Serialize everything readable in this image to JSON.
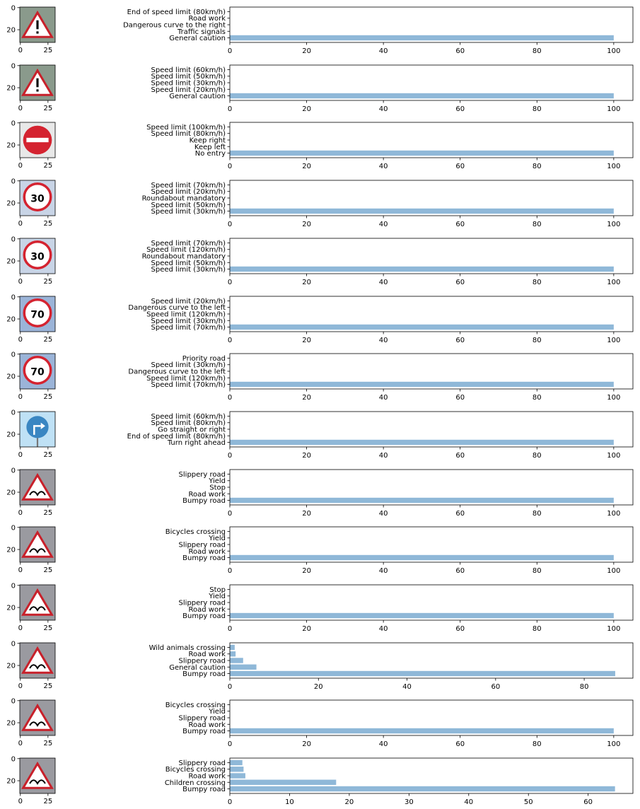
{
  "chart_data": [
    {
      "type": "bar",
      "orientation": "horizontal",
      "thumbnail": {
        "icon": "general-caution-sign-icon",
        "ytick_labels": [
          "0",
          "20"
        ],
        "xtick_labels": [
          "0",
          "25"
        ]
      },
      "categories": [
        "General caution",
        "Traffic signals",
        "Dangerous curve to the right",
        "Road work",
        "End of speed limit (80km/h)"
      ],
      "values": [
        100,
        0,
        0,
        0,
        0
      ],
      "xlim": [
        0,
        105
      ],
      "xticks": [
        0,
        20,
        40,
        60,
        80,
        100
      ]
    },
    {
      "type": "bar",
      "orientation": "horizontal",
      "thumbnail": {
        "icon": "general-caution-sign-icon",
        "ytick_labels": [
          "0",
          "20"
        ],
        "xtick_labels": [
          "0",
          "25"
        ]
      },
      "categories": [
        "General caution",
        "Speed limit (20km/h)",
        "Speed limit (30km/h)",
        "Speed limit (50km/h)",
        "Speed limit (60km/h)"
      ],
      "values": [
        100,
        0,
        0,
        0,
        0
      ],
      "xlim": [
        0,
        105
      ],
      "xticks": [
        0,
        20,
        40,
        60,
        80,
        100
      ]
    },
    {
      "type": "bar",
      "orientation": "horizontal",
      "thumbnail": {
        "icon": "no-entry-sign-icon",
        "ytick_labels": [
          "0",
          "20"
        ],
        "xtick_labels": [
          "0",
          "25"
        ]
      },
      "categories": [
        "No entry",
        "Keep left",
        "Keep right",
        "Speed limit (80km/h)",
        "Speed limit (100km/h)"
      ],
      "values": [
        100,
        0,
        0,
        0,
        0
      ],
      "xlim": [
        0,
        105
      ],
      "xticks": [
        0,
        20,
        40,
        60,
        80,
        100
      ]
    },
    {
      "type": "bar",
      "orientation": "horizontal",
      "thumbnail": {
        "icon": "speed-limit-30-sign-icon",
        "sign_text": "30",
        "ytick_labels": [
          "0",
          "20"
        ],
        "xtick_labels": [
          "0",
          "25"
        ]
      },
      "categories": [
        "Speed limit (30km/h)",
        "Speed limit (50km/h)",
        "Roundabout mandatory",
        "Speed limit (20km/h)",
        "Speed limit (70km/h)"
      ],
      "values": [
        100,
        0,
        0,
        0,
        0
      ],
      "xlim": [
        0,
        105
      ],
      "xticks": [
        0,
        20,
        40,
        60,
        80,
        100
      ]
    },
    {
      "type": "bar",
      "orientation": "horizontal",
      "thumbnail": {
        "icon": "speed-limit-30-sign-icon",
        "sign_text": "30",
        "ytick_labels": [
          "0",
          "20"
        ],
        "xtick_labels": [
          "0",
          "25"
        ]
      },
      "categories": [
        "Speed limit (30km/h)",
        "Speed limit (50km/h)",
        "Roundabout mandatory",
        "Speed limit (120km/h)",
        "Speed limit (70km/h)"
      ],
      "values": [
        100,
        0,
        0,
        0,
        0
      ],
      "xlim": [
        0,
        105
      ],
      "xticks": [
        0,
        20,
        40,
        60,
        80,
        100
      ]
    },
    {
      "type": "bar",
      "orientation": "horizontal",
      "thumbnail": {
        "icon": "speed-limit-70-sign-icon",
        "sign_text": "70",
        "ytick_labels": [
          "0",
          "20"
        ],
        "xtick_labels": [
          "0",
          "25"
        ]
      },
      "categories": [
        "Speed limit (70km/h)",
        "Speed limit (30km/h)",
        "Speed limit (120km/h)",
        "Dangerous curve to the left",
        "Speed limit (20km/h)"
      ],
      "values": [
        100,
        0,
        0,
        0,
        0
      ],
      "xlim": [
        0,
        105
      ],
      "xticks": [
        0,
        20,
        40,
        60,
        80,
        100
      ]
    },
    {
      "type": "bar",
      "orientation": "horizontal",
      "thumbnail": {
        "icon": "speed-limit-70-sign-icon",
        "sign_text": "70",
        "ytick_labels": [
          "0",
          "20"
        ],
        "xtick_labels": [
          "0",
          "25"
        ]
      },
      "categories": [
        "Speed limit (70km/h)",
        "Speed limit (120km/h)",
        "Dangerous curve to the left",
        "Speed limit (30km/h)",
        "Priority road"
      ],
      "values": [
        100,
        0,
        0,
        0,
        0
      ],
      "xlim": [
        0,
        105
      ],
      "xticks": [
        0,
        20,
        40,
        60,
        80,
        100
      ]
    },
    {
      "type": "bar",
      "orientation": "horizontal",
      "thumbnail": {
        "icon": "turn-right-ahead-sign-icon",
        "ytick_labels": [
          "0",
          "20"
        ],
        "xtick_labels": [
          "0",
          "25"
        ]
      },
      "categories": [
        "Turn right ahead",
        "End of speed limit (80km/h)",
        "Go straight or right",
        "Speed limit (80km/h)",
        "Speed limit (60km/h)"
      ],
      "values": [
        100,
        0,
        0,
        0,
        0
      ],
      "xlim": [
        0,
        105
      ],
      "xticks": [
        0,
        20,
        40,
        60,
        80,
        100
      ]
    },
    {
      "type": "bar",
      "orientation": "horizontal",
      "thumbnail": {
        "icon": "bumpy-road-sign-icon",
        "ytick_labels": [
          "0",
          "20"
        ],
        "xtick_labels": [
          "0",
          "25"
        ]
      },
      "categories": [
        "Bumpy road",
        "Road work",
        "Stop",
        "Yield",
        "Slippery road"
      ],
      "values": [
        100,
        0,
        0,
        0,
        0
      ],
      "xlim": [
        0,
        105
      ],
      "xticks": [
        0,
        20,
        40,
        60,
        80,
        100
      ]
    },
    {
      "type": "bar",
      "orientation": "horizontal",
      "thumbnail": {
        "icon": "bumpy-road-sign-icon",
        "ytick_labels": [
          "0",
          "20"
        ],
        "xtick_labels": [
          "0",
          "25"
        ]
      },
      "categories": [
        "Bumpy road",
        "Road work",
        "Slippery road",
        "Yield",
        "Bicycles crossing"
      ],
      "values": [
        100,
        0,
        0,
        0,
        0
      ],
      "xlim": [
        0,
        105
      ],
      "xticks": [
        0,
        20,
        40,
        60,
        80,
        100
      ]
    },
    {
      "type": "bar",
      "orientation": "horizontal",
      "thumbnail": {
        "icon": "bumpy-road-sign-icon",
        "ytick_labels": [
          "0",
          "20"
        ],
        "xtick_labels": [
          "0",
          "25"
        ]
      },
      "categories": [
        "Bumpy road",
        "Road work",
        "Slippery road",
        "Yield",
        "Stop"
      ],
      "values": [
        100,
        0,
        0,
        0,
        0
      ],
      "xlim": [
        0,
        105
      ],
      "xticks": [
        0,
        20,
        40,
        60,
        80,
        100
      ]
    },
    {
      "type": "bar",
      "orientation": "horizontal",
      "thumbnail": {
        "icon": "bumpy-road-sign-icon",
        "ytick_labels": [
          "0",
          "20"
        ],
        "xtick_labels": [
          "0",
          "25"
        ]
      },
      "categories": [
        "Bumpy road",
        "General caution",
        "Slippery road",
        "Road work",
        "Wild animals crossing"
      ],
      "values": [
        87,
        6,
        3,
        1.3,
        1.1
      ],
      "xlim": [
        0,
        91
      ],
      "xticks": [
        0,
        20,
        40,
        60,
        80
      ]
    },
    {
      "type": "bar",
      "orientation": "horizontal",
      "thumbnail": {
        "icon": "bumpy-road-sign-icon",
        "ytick_labels": [
          "0",
          "20"
        ],
        "xtick_labels": [
          "0",
          "25"
        ]
      },
      "categories": [
        "Bumpy road",
        "Road work",
        "Slippery road",
        "Yield",
        "Bicycles crossing"
      ],
      "values": [
        100,
        0,
        0,
        0,
        0
      ],
      "xlim": [
        0,
        105
      ],
      "xticks": [
        0,
        20,
        40,
        60,
        80,
        100
      ]
    },
    {
      "type": "bar",
      "orientation": "horizontal",
      "thumbnail": {
        "icon": "bumpy-road-sign-icon",
        "ytick_labels": [
          "0",
          "20"
        ],
        "xtick_labels": [
          "0",
          "25"
        ]
      },
      "categories": [
        "Bumpy road",
        "Children crossing",
        "Road work",
        "Bicycles crossing",
        "Slippery road"
      ],
      "values": [
        64.5,
        17.8,
        2.6,
        2.3,
        2.1
      ],
      "xlim": [
        0,
        67.5
      ],
      "xticks": [
        0,
        10,
        20,
        30,
        40,
        50,
        60
      ]
    }
  ],
  "colors": {
    "bar": "#8fb8d8",
    "axis": "#000000",
    "background": "#ffffff"
  }
}
